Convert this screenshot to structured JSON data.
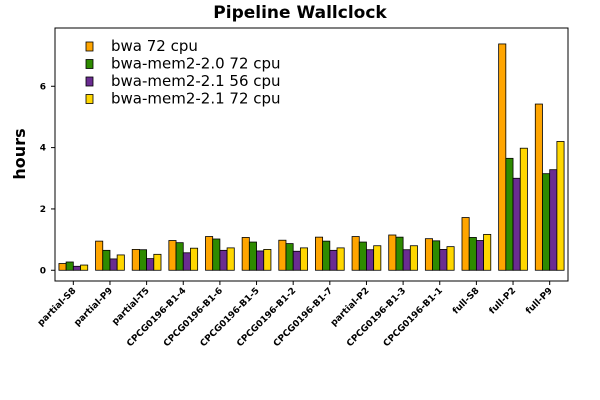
{
  "chart_data": {
    "type": "bar",
    "title": "Pipeline Wallclock",
    "xlabel": "",
    "ylabel": "hours",
    "ylim": [
      -0.35,
      7.9
    ],
    "yticks": [
      0,
      2,
      4,
      6
    ],
    "grid": false,
    "legend_position": "top-left",
    "categories": [
      "partial-S8",
      "partial-P9",
      "partial-T5",
      "CPCG0196-B1-4",
      "CPCG0196-B1-6",
      "CPCG0196-B1-5",
      "CPCG0196-B1-2",
      "CPCG0196-B1-7",
      "partial-P2",
      "CPCG0196-B1-3",
      "CPCG0196-B1-1",
      "full-S8",
      "full-P2",
      "full-P9"
    ],
    "series": [
      {
        "name": "bwa 72 cpu",
        "color": "#FFA500",
        "values": [
          0.22,
          0.95,
          0.68,
          0.97,
          1.1,
          1.07,
          0.98,
          1.08,
          1.1,
          1.15,
          1.03,
          1.72,
          7.38,
          5.42
        ]
      },
      {
        "name": "bwa-mem2-2.0 72 cpu",
        "color": "#2E8B00",
        "values": [
          0.27,
          0.65,
          0.67,
          0.9,
          1.02,
          0.92,
          0.87,
          0.95,
          0.92,
          1.08,
          0.96,
          1.07,
          3.65,
          3.15
        ]
      },
      {
        "name": "bwa-mem2-2.1 56 cpu",
        "color": "#6A2C91",
        "values": [
          0.13,
          0.37,
          0.38,
          0.57,
          0.65,
          0.63,
          0.62,
          0.65,
          0.67,
          0.67,
          0.68,
          0.97,
          3.0,
          3.28
        ]
      },
      {
        "name": "bwa-mem2-2.1 72 cpu",
        "color": "#FFD700",
        "values": [
          0.17,
          0.5,
          0.52,
          0.72,
          0.73,
          0.68,
          0.73,
          0.73,
          0.8,
          0.8,
          0.77,
          1.17,
          3.98,
          4.2
        ]
      }
    ]
  }
}
